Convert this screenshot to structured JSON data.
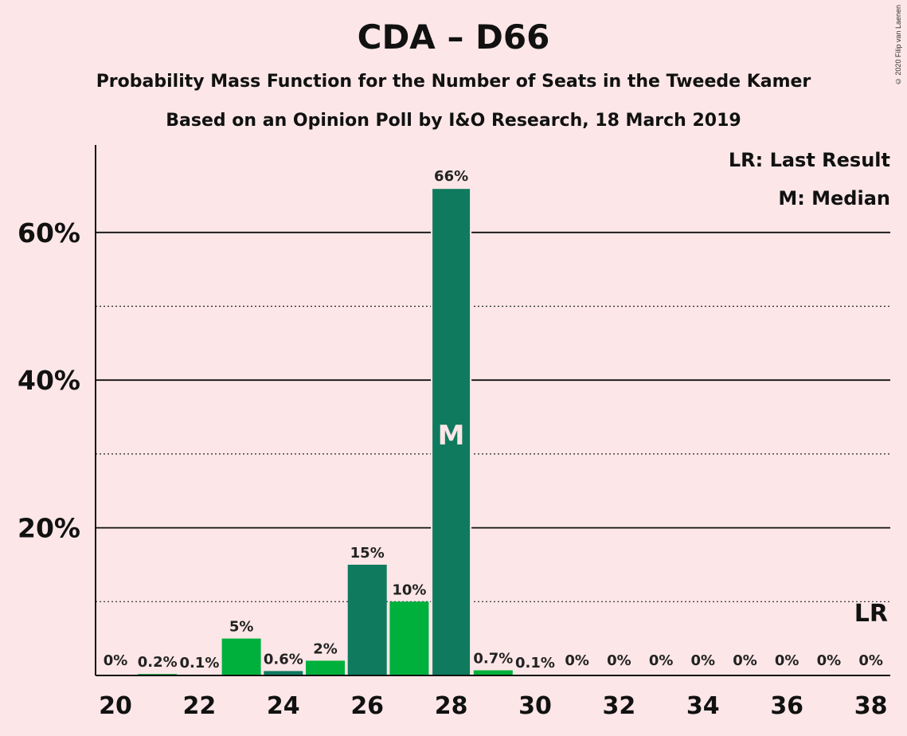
{
  "chart_data": {
    "type": "bar",
    "title": "CDA – D66",
    "subtitle": "Probability Mass Function for the Number of Seats in the Tweede Kamer",
    "subtitle2": "Based on an Opinion Poll by I&O Research, 18 March 2019",
    "copyright": "© 2020 Filip van Laenen",
    "legend": {
      "last_result": "LR: Last Result",
      "median": "M: Median"
    },
    "markers": {
      "median_label": "M",
      "median_seat": 28,
      "last_result_label": "LR",
      "last_result_seat": 38
    },
    "ylim": [
      0,
      0.7
    ],
    "y_ticks": [
      {
        "value": 0.2,
        "label": "20%"
      },
      {
        "value": 0.4,
        "label": "40%"
      },
      {
        "value": 0.6,
        "label": "60%"
      }
    ],
    "y_minor_ticks": [
      0.1,
      0.3,
      0.5
    ],
    "x_ticks": [
      "20",
      "22",
      "24",
      "26",
      "28",
      "30",
      "32",
      "34",
      "36",
      "38"
    ],
    "categories": [
      20,
      21,
      22,
      23,
      24,
      25,
      26,
      27,
      28,
      29,
      30,
      31,
      32,
      33,
      34,
      35,
      36,
      37,
      38
    ],
    "values": [
      0,
      0.002,
      0.001,
      0.05,
      0.006,
      0.02,
      0.15,
      0.1,
      0.66,
      0.007,
      0.001,
      0,
      0,
      0,
      0,
      0,
      0,
      0,
      0
    ],
    "labels": [
      "0%",
      "0.2%",
      "0.1%",
      "5%",
      "0.6%",
      "2%",
      "15%",
      "10%",
      "66%",
      "0.7%",
      "0.1%",
      "0%",
      "0%",
      "0%",
      "0%",
      "0%",
      "0%",
      "0%",
      "0%"
    ],
    "colors": {
      "even_seat": "#0f7a5e",
      "odd_seat": "#00b03c",
      "background": "#fce6e7"
    }
  }
}
